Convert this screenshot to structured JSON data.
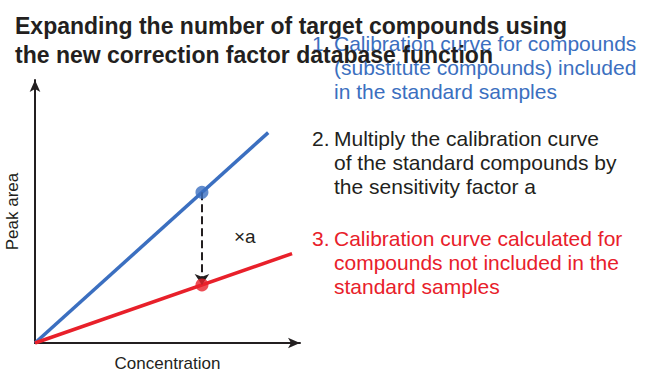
{
  "chart_data": {
    "type": "line",
    "title": "Expanding the number of target compounds using\nthe new correction factor database function",
    "x_label": "Concentration",
    "y_label": "Peak area",
    "xlim": [
      0,
      100
    ],
    "ylim": [
      0,
      100
    ],
    "grid": false,
    "tick_labels": false,
    "series": [
      {
        "type": "line",
        "color": "#3b6fc0",
        "x": [
          0,
          88
        ],
        "values": [
          0,
          80
        ]
      },
      {
        "type": "line",
        "color": "#e8202a",
        "x": [
          0,
          97
        ],
        "values": [
          0,
          34
        ]
      },
      {
        "type": "scatter",
        "color": "#3b6fc0",
        "x": [
          63
        ],
        "values": [
          57.3
        ]
      },
      {
        "type": "scatter",
        "color": "#e8202a",
        "x": [
          63
        ],
        "values": [
          22.1
        ]
      }
    ],
    "arrow_label": "×a",
    "notes": [
      {
        "label": "1.",
        "color": "#3b6fc0",
        "lines": [
          "Calibration curve for compounds",
          "(substitute compounds) included",
          "in the standard samples"
        ]
      },
      {
        "label": "2.",
        "color": "#231f20",
        "lines": [
          "Multiply the calibration curve",
          "of the standard compounds by",
          "the sensitivity factor a"
        ]
      },
      {
        "label": "3.",
        "color": "#e8202a",
        "lines": [
          "Calibration curve calculated for",
          "compounds not included in the",
          "standard samples"
        ]
      }
    ]
  }
}
